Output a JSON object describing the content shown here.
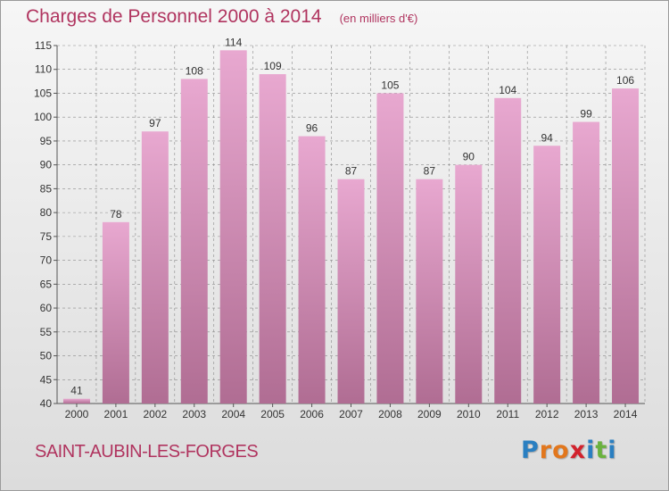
{
  "header": {
    "title": "Charges de Personnel 2000 à 2014",
    "subtitle": "(en milliers d'€)"
  },
  "footer": {
    "location": "SAINT-AUBIN-LES-FORGES",
    "logo_letters": [
      {
        "char": "P",
        "color": "#2a7fc1"
      },
      {
        "char": "r",
        "color": "#e2771d"
      },
      {
        "char": "o",
        "color": "#e2771d"
      },
      {
        "char": "x",
        "color": "#d2222d"
      },
      {
        "char": "i",
        "color": "#2a7fc1"
      },
      {
        "char": "t",
        "color": "#6ab23e"
      },
      {
        "char": "i",
        "color": "#2a7fc1"
      }
    ]
  },
  "colors": {
    "bar_top": "#e8a8d0",
    "bar_bottom": "#b06d93",
    "grid": "#8a8a8a",
    "text": "#333333",
    "accent": "#b0345f"
  },
  "chart_data": {
    "type": "bar",
    "title": "Charges de Personnel 2000 à 2014",
    "subtitle": "(en milliers d'€)",
    "categories": [
      "2000",
      "2001",
      "2002",
      "2003",
      "2004",
      "2005",
      "2006",
      "2007",
      "2008",
      "2009",
      "2010",
      "2011",
      "2012",
      "2013",
      "2014"
    ],
    "values": [
      41,
      78,
      97,
      108,
      114,
      109,
      96,
      87,
      105,
      87,
      90,
      104,
      94,
      99,
      106
    ],
    "ylim": [
      40,
      115
    ],
    "yticks": [
      40,
      45,
      50,
      55,
      60,
      65,
      70,
      75,
      80,
      85,
      90,
      95,
      100,
      105,
      110,
      115
    ],
    "grid": true,
    "data_labels": true
  }
}
